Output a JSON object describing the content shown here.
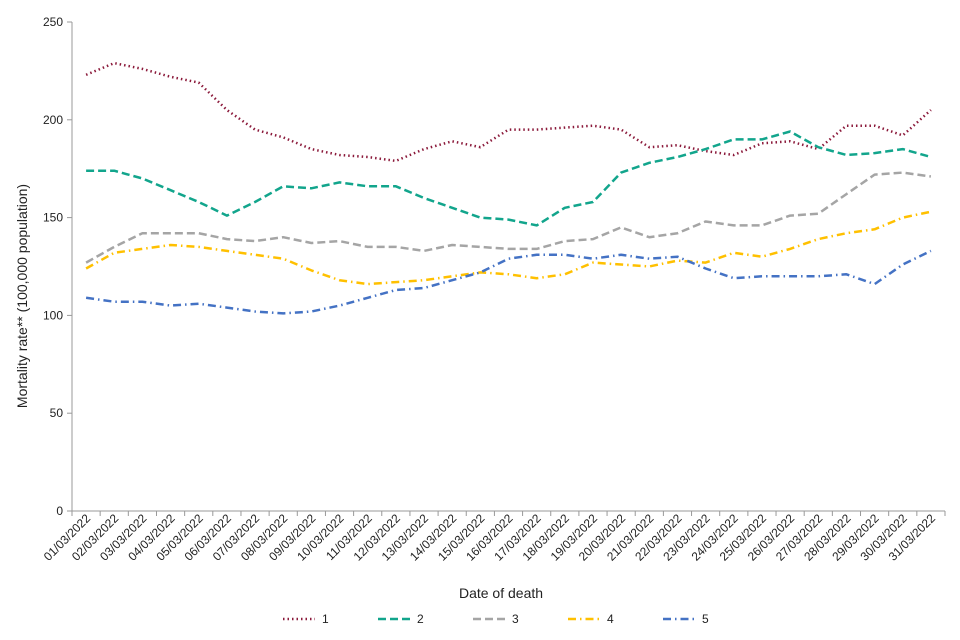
{
  "chart_data": {
    "type": "line",
    "title": "",
    "xlabel": "Date of death",
    "ylabel": "Mortality rate** (100,000 population)",
    "ylim": [
      0,
      250
    ],
    "yticks": [
      0,
      50,
      100,
      150,
      200,
      250
    ],
    "grid": false,
    "legend_position": "bottom",
    "categories": [
      "01/03/2022",
      "02/03/2022",
      "03/03/2022",
      "04/03/2022",
      "05/03/2022",
      "06/03/2022",
      "07/03/2022",
      "08/03/2022",
      "09/03/2022",
      "10/03/2022",
      "11/03/2022",
      "12/03/2022",
      "13/03/2022",
      "14/03/2022",
      "15/03/2022",
      "16/03/2022",
      "17/03/2022",
      "18/03/2022",
      "19/03/2022",
      "20/03/2022",
      "21/03/2022",
      "22/03/2022",
      "23/03/2022",
      "24/03/2022",
      "25/03/2022",
      "26/03/2022",
      "27/03/2022",
      "28/03/2022",
      "29/03/2022",
      "30/03/2022",
      "31/03/2022"
    ],
    "series": [
      {
        "name": "1",
        "color": "#8b1a3b",
        "dash": "dotted",
        "values": [
          223,
          229,
          226,
          222,
          219,
          205,
          195,
          191,
          185,
          182,
          181,
          179,
          185,
          189,
          186,
          195,
          195,
          196,
          197,
          195,
          186,
          187,
          184,
          182,
          188,
          189,
          185,
          197,
          197,
          192,
          205
        ]
      },
      {
        "name": "2",
        "color": "#12a58c",
        "dash": "dashed",
        "values": [
          174,
          174,
          170,
          164,
          158,
          151,
          158,
          166,
          165,
          168,
          166,
          166,
          160,
          155,
          150,
          149,
          146,
          155,
          158,
          173,
          178,
          181,
          185,
          190,
          190,
          194,
          186,
          182,
          183,
          185,
          181
        ]
      },
      {
        "name": "3",
        "color": "#a5a5a5",
        "dash": "dashed",
        "values": [
          127,
          135,
          142,
          142,
          142,
          139,
          138,
          140,
          137,
          138,
          135,
          135,
          133,
          136,
          135,
          134,
          134,
          138,
          139,
          145,
          140,
          142,
          148,
          146,
          146,
          151,
          152,
          162,
          172,
          173,
          171
        ]
      },
      {
        "name": "4",
        "color": "#ffc000",
        "dash": "dashdot",
        "values": [
          124,
          132,
          134,
          136,
          135,
          133,
          131,
          129,
          123,
          118,
          116,
          117,
          118,
          120,
          122,
          121,
          119,
          121,
          127,
          126,
          125,
          128,
          127,
          132,
          130,
          134,
          139,
          142,
          144,
          150,
          153
        ]
      },
      {
        "name": "5",
        "color": "#4472c4",
        "dash": "dashdot",
        "values": [
          109,
          107,
          107,
          105,
          106,
          104,
          102,
          101,
          102,
          105,
          109,
          113,
          114,
          118,
          122,
          129,
          131,
          131,
          129,
          131,
          129,
          130,
          124,
          119,
          120,
          120,
          120,
          121,
          116,
          126,
          133
        ]
      }
    ]
  }
}
